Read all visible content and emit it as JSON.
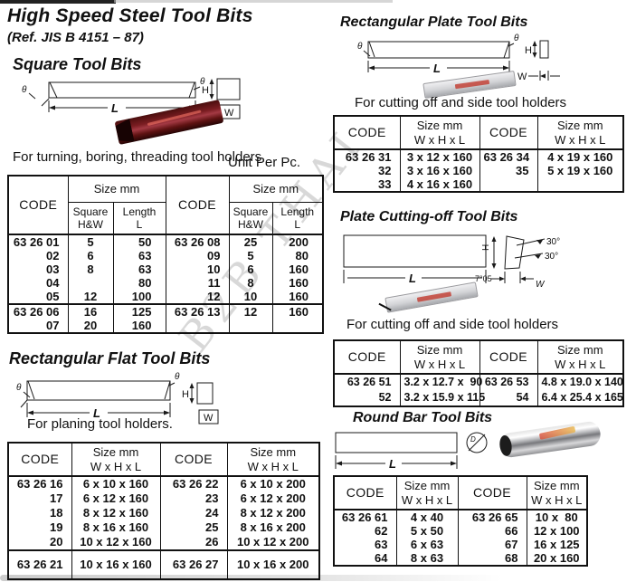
{
  "page": {
    "title": "High Speed Steel Tool Bits",
    "ref": "(Ref. JIS B 4151 – 87)",
    "unit_note": "Unit Per Pc.",
    "watermark": "B2B THAI"
  },
  "labels": {
    "code": "CODE",
    "size_mm": "Size mm",
    "square_hw": "Square\nH&W",
    "length_l": "Length\nL",
    "size_whl": "Size mm\nW x H x L",
    "theta": "θ",
    "len": "L",
    "height": "H",
    "width": "W",
    "deg30a": "30°",
    "deg30b": "30°",
    "angle705": "7°05",
    "dia": "D"
  },
  "colors": {
    "ink": "#111111",
    "maroon_bit": "#7b1d22",
    "silver_plate": "#d2d3d6",
    "label_red": "#c23a2e"
  },
  "sections": {
    "square": {
      "title": "Square Tool Bits",
      "caption": "For turning, boring, threading tool holders.",
      "table": {
        "rows": [
          [
            "63 26 01",
            "5",
            "50",
            "63 26 08",
            "25",
            "200"
          ],
          [
            "02",
            "6",
            "63",
            "09",
            "5",
            "80"
          ],
          [
            "03",
            "8",
            "63",
            "10",
            "6",
            "160"
          ],
          [
            "04",
            "",
            "80",
            "11",
            "8",
            "160"
          ],
          [
            "05",
            "12",
            "100",
            "12",
            "10",
            "160"
          ],
          [
            "63 26 06",
            "16",
            "125",
            "63 26 13",
            "12",
            "160"
          ],
          [
            "07",
            "20",
            "160",
            "",
            "",
            ""
          ]
        ],
        "group_start": [
          5
        ]
      }
    },
    "flat": {
      "title": "Rectangular Flat Tool Bits",
      "caption": "For planing tool holders.",
      "table": {
        "rows": [
          [
            "63 26 16",
            "6 x 10 x 160",
            "63 26 22",
            "6 x 10 x 200"
          ],
          [
            "17",
            "6 x 12 x 160",
            "23",
            "6 x 12 x 200"
          ],
          [
            "18",
            "8 x 12 x 160",
            "24",
            "8 x 12 x 200"
          ],
          [
            "19",
            "8 x 16 x 160",
            "25",
            "8 x 16 x 200"
          ],
          [
            "20",
            "10 x 12 x 160",
            "26",
            "10 x 12 x 200"
          ],
          [
            "63 26 21",
            "10 x 16 x 160",
            "63 26 27",
            "10 x 16 x 200"
          ]
        ],
        "group_start": [
          5
        ]
      }
    },
    "plate": {
      "title": "Rectangular Plate Tool Bits",
      "caption": "For cutting off and side tool holders",
      "table": {
        "rows": [
          [
            "63 26 31",
            "3 x 12 x 160",
            "63 26 34",
            "4 x 19 x 160"
          ],
          [
            "32",
            "3 x 16 x 160",
            "35",
            "5 x 19 x 160"
          ],
          [
            "33",
            "4 x 16 x 160",
            "",
            ""
          ]
        ],
        "group_start": []
      }
    },
    "cutoff": {
      "title": "Plate Cutting-off Tool Bits",
      "caption": "For cutting off and side tool holders",
      "table": {
        "rows": [
          [
            "63 26 51",
            "3.2 x 12.7 x  90",
            "63 26 53",
            "4.8 x 19.0 x 140"
          ],
          [
            "52",
            "3.2 x 15.9 x 115",
            "54",
            "6.4 x 25.4 x 165"
          ]
        ],
        "group_start": []
      }
    },
    "round": {
      "title": "Round Bar Tool Bits",
      "table": {
        "rows": [
          [
            "63 26 61",
            "4 x 40",
            "63 26 65",
            "10 x  80"
          ],
          [
            "62",
            "5 x 50",
            "66",
            "12 x 100"
          ],
          [
            "63",
            "6 x 63",
            "67",
            "16 x 125"
          ],
          [
            "64",
            "8 x 63",
            "68",
            "20 x 160"
          ]
        ],
        "group_start": []
      }
    }
  }
}
